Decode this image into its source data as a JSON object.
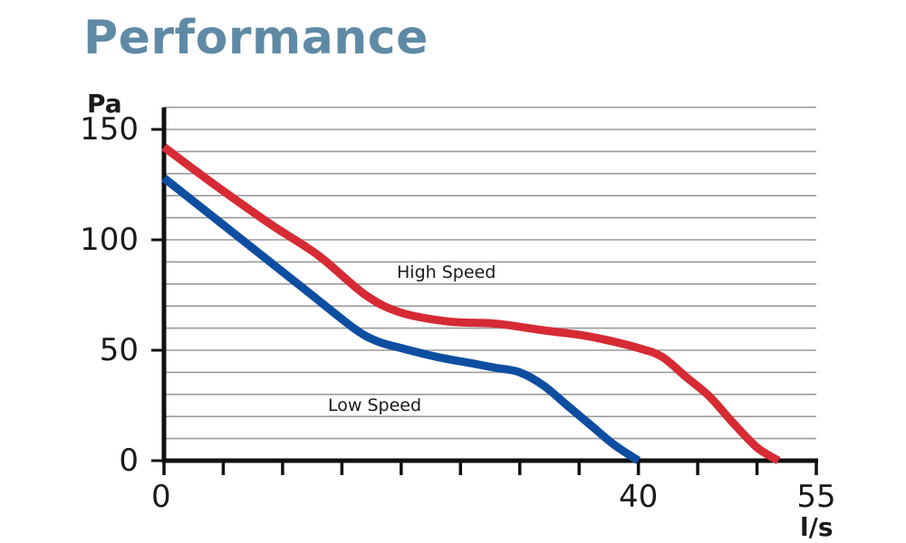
{
  "title": "Performance",
  "chart_data": {
    "type": "line",
    "title": "Performance",
    "xlabel": "l/s",
    "ylabel": "Pa",
    "xlim": [
      0,
      55
    ],
    "ylim": [
      0,
      160
    ],
    "x_ticks_labeled": [
      0,
      40,
      55
    ],
    "x_tick_interval": 5,
    "y_ticks_labeled": [
      0,
      50,
      100,
      150
    ],
    "y_grid_interval": 10,
    "grid": "horizontal",
    "series": [
      {
        "name": "High Speed",
        "color": "#d62a34",
        "x": [
          0,
          4,
          9,
          13,
          17,
          20,
          24,
          28,
          32,
          35,
          37,
          40,
          42,
          44,
          46,
          48,
          50,
          51.8
        ],
        "y": [
          142,
          126,
          107,
          93,
          75,
          67,
          63,
          62,
          59,
          57,
          55,
          51,
          47,
          38,
          29,
          17,
          6,
          0
        ]
      },
      {
        "name": "Low Speed",
        "color": "#0e4ea1",
        "x": [
          0,
          4,
          8,
          12,
          16,
          18,
          20,
          23,
          26,
          28,
          30,
          32,
          34,
          36,
          38,
          40
        ],
        "y": [
          128,
          111,
          94,
          77,
          60,
          54,
          51,
          47,
          44,
          42,
          40,
          34,
          25,
          16,
          7,
          0
        ]
      }
    ]
  }
}
